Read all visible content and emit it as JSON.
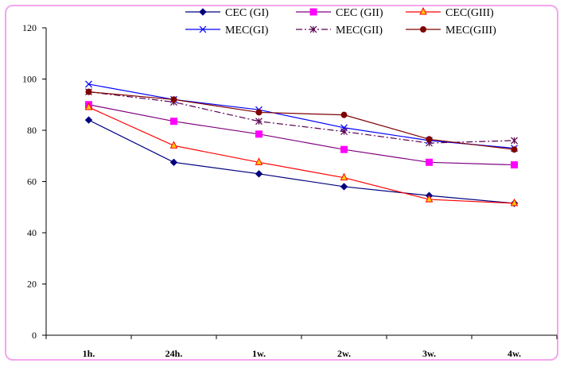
{
  "chart_data": {
    "type": "line",
    "title": "",
    "xlabel": "",
    "ylabel": "",
    "categories": [
      "1h.",
      "24h.",
      "1w.",
      "2w.",
      "3w.",
      "4w."
    ],
    "ylim": [
      0,
      120
    ],
    "yticks": [
      0,
      20,
      40,
      60,
      80,
      100,
      120
    ],
    "grid": false,
    "legend_position": "top",
    "series": [
      {
        "name": "CEC (GI)",
        "values": [
          84,
          67.5,
          63,
          58,
          54.5,
          51.5
        ],
        "color": "#00007f",
        "marker": "diamond",
        "dash": "solid"
      },
      {
        "name": "CEC (GII)",
        "values": [
          90,
          83.5,
          78.5,
          72.5,
          67.5,
          66.5
        ],
        "color": "#7f007f",
        "marker": "square",
        "marker_color": "#ff00ff",
        "dash": "solid"
      },
      {
        "name": "CEC(GIII)",
        "values": [
          89,
          74,
          67.5,
          61.5,
          53,
          51.5
        ],
        "color": "#ff0000",
        "marker": "triangle",
        "marker_color": "#ffcc00",
        "dash": "solid"
      },
      {
        "name": "MEC(GI)",
        "values": [
          98,
          92,
          88,
          81,
          76,
          73
        ],
        "color": "#0000ff",
        "marker": "x",
        "dash": "solid"
      },
      {
        "name": "MEC(GII)",
        "values": [
          95,
          91,
          83.5,
          79.5,
          75,
          76
        ],
        "color": "#5a0050",
        "marker": "star",
        "dash": "dashdot"
      },
      {
        "name": "MEC(GIII)",
        "values": [
          95,
          92,
          87,
          86,
          76.5,
          72.5
        ],
        "color": "#7f0000",
        "marker": "circle",
        "dash": "solid"
      }
    ]
  }
}
